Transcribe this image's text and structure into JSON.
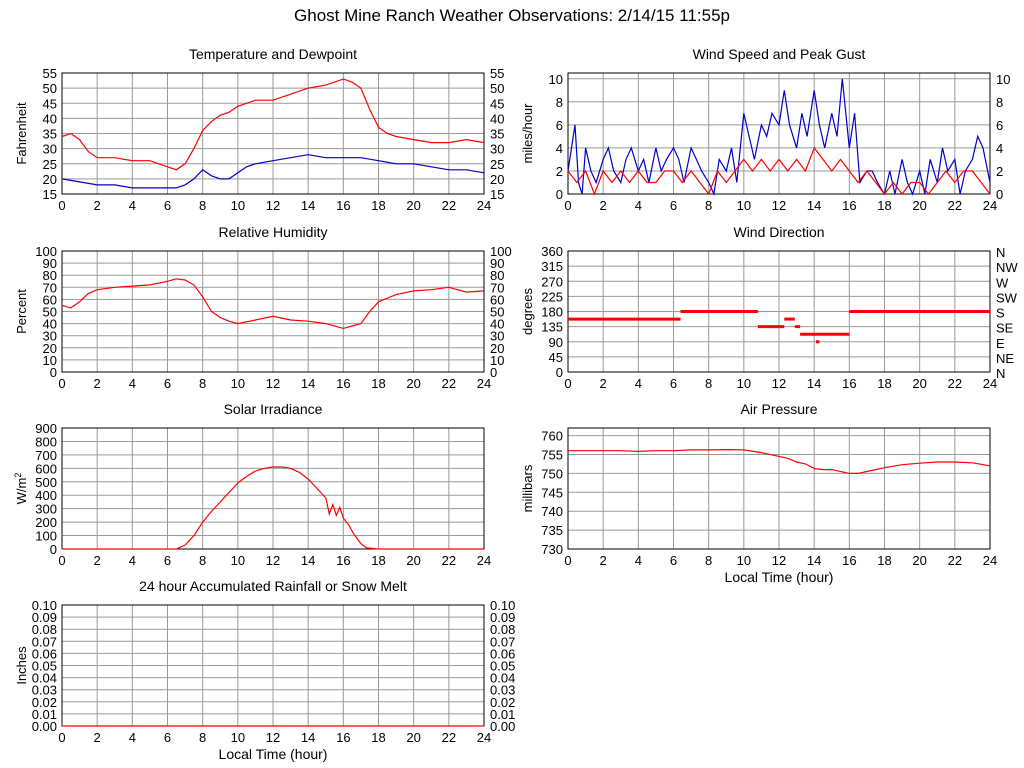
{
  "page": {
    "title": "Ghost Mine Ranch Weather Observations: 2/14/15 11:55p"
  },
  "chart_data": [
    {
      "id": "temperature",
      "type": "line",
      "title": "Temperature and Dewpoint",
      "ylabel": "Fahrenheit",
      "xlim": [
        0,
        24
      ],
      "ylim": [
        15,
        55
      ],
      "xticks": [
        0,
        2,
        4,
        6,
        8,
        10,
        12,
        14,
        16,
        18,
        20,
        22,
        24
      ],
      "yticks": [
        15,
        20,
        25,
        30,
        35,
        40,
        45,
        50,
        55
      ],
      "right_axis": true,
      "series": [
        {
          "color": "#ff0000",
          "x": [
            0,
            0.5,
            1,
            1.5,
            2,
            3,
            4,
            5,
            5.5,
            6,
            6.5,
            7,
            7.5,
            8,
            8.5,
            9,
            9.5,
            10,
            10.5,
            11,
            12,
            13,
            14,
            15,
            15.5,
            16,
            16.5,
            17,
            17.5,
            18,
            18.5,
            19,
            20,
            21,
            22,
            23,
            24
          ],
          "y": [
            34,
            35,
            33,
            29,
            27,
            27,
            26,
            26,
            25,
            24,
            23,
            25,
            30,
            36,
            39,
            41,
            42,
            44,
            45,
            46,
            46,
            48,
            50,
            51,
            52,
            53,
            52,
            50,
            43,
            37,
            35,
            34,
            33,
            32,
            32,
            33,
            32
          ]
        },
        {
          "color": "#0000cc",
          "x": [
            0,
            1,
            2,
            3,
            4,
            5,
            6,
            6.5,
            7,
            7.5,
            8,
            8.5,
            9,
            9.5,
            10,
            10.5,
            11,
            12,
            13,
            14,
            15,
            16,
            17,
            18,
            19,
            20,
            21,
            22,
            23,
            24
          ],
          "y": [
            20,
            19,
            18,
            18,
            17,
            17,
            17,
            17,
            18,
            20,
            23,
            21,
            20,
            20,
            22,
            24,
            25,
            26,
            27,
            28,
            27,
            27,
            27,
            26,
            25,
            25,
            24,
            23,
            23,
            22
          ]
        }
      ]
    },
    {
      "id": "wind_speed",
      "type": "line",
      "title": "Wind Speed and Peak Gust",
      "ylabel": "miles/hour",
      "xlim": [
        0,
        24
      ],
      "ylim": [
        0,
        10.5
      ],
      "xticks": [
        0,
        2,
        4,
        6,
        8,
        10,
        12,
        14,
        16,
        18,
        20,
        22,
        24
      ],
      "yticks": [
        0,
        2,
        4,
        6,
        8,
        10
      ],
      "right_axis": true,
      "series": [
        {
          "color": "#0000cc",
          "x": [
            0,
            0.2,
            0.4,
            0.6,
            0.8,
            1,
            1.3,
            1.6,
            2,
            2.3,
            2.6,
            3,
            3.3,
            3.6,
            4,
            4.3,
            4.6,
            5,
            5.3,
            5.6,
            6,
            6.3,
            6.6,
            7,
            7.3,
            7.6,
            8,
            8.3,
            8.6,
            9,
            9.3,
            9.6,
            10,
            10.3,
            10.6,
            11,
            11.3,
            11.6,
            12,
            12.3,
            12.6,
            13,
            13.3,
            13.6,
            14,
            14.3,
            14.6,
            15,
            15.3,
            15.6,
            16,
            16.3,
            16.6,
            17,
            17.3,
            17.6,
            18,
            18.3,
            18.6,
            19,
            19.3,
            19.6,
            20,
            20.3,
            20.6,
            21,
            21.3,
            21.6,
            22,
            22.3,
            22.6,
            23,
            23.3,
            23.6,
            24
          ],
          "y": [
            2,
            4,
            6,
            1,
            0,
            4,
            2,
            1,
            3,
            4,
            2,
            1,
            3,
            4,
            2,
            3,
            1,
            4,
            2,
            3,
            4,
            3,
            1,
            4,
            3,
            2,
            1,
            0,
            3,
            2,
            4,
            1,
            7,
            5,
            3,
            6,
            5,
            7,
            6,
            9,
            6,
            4,
            7,
            5,
            9,
            6,
            4,
            7,
            5,
            10,
            4,
            7,
            1,
            2,
            2,
            1,
            0,
            2,
            0,
            3,
            1,
            0,
            2,
            0,
            3,
            1,
            4,
            2,
            3,
            0,
            2,
            3,
            5,
            4,
            1
          ]
        },
        {
          "color": "#ff0000",
          "x": [
            0,
            0.5,
            1,
            1.5,
            2,
            2.5,
            3,
            3.5,
            4,
            4.5,
            5,
            5.5,
            6,
            6.5,
            7,
            7.5,
            8,
            8.5,
            9,
            9.5,
            10,
            10.5,
            11,
            11.5,
            12,
            12.5,
            13,
            13.5,
            14,
            14.5,
            15,
            15.5,
            16,
            16.5,
            17,
            17.5,
            18,
            18.5,
            19,
            19.5,
            20,
            20.5,
            21,
            21.5,
            22,
            22.5,
            23,
            23.5,
            24
          ],
          "y": [
            2,
            1,
            2,
            0,
            2,
            1,
            2,
            1,
            2,
            1,
            1,
            2,
            2,
            1,
            2,
            1,
            0,
            2,
            1,
            2,
            3,
            2,
            3,
            2,
            3,
            2,
            3,
            2,
            4,
            3,
            2,
            3,
            2,
            1,
            2,
            1,
            0,
            1,
            0,
            1,
            1,
            0,
            1,
            2,
            1,
            2,
            2,
            1,
            0
          ]
        }
      ]
    },
    {
      "id": "humidity",
      "type": "line",
      "title": "Relative Humidity",
      "ylabel": "Percent",
      "xlim": [
        0,
        24
      ],
      "ylim": [
        0,
        100
      ],
      "xticks": [
        0,
        2,
        4,
        6,
        8,
        10,
        12,
        14,
        16,
        18,
        20,
        22,
        24
      ],
      "yticks": [
        0,
        10,
        20,
        30,
        40,
        50,
        60,
        70,
        80,
        90,
        100
      ],
      "right_axis": true,
      "series": [
        {
          "color": "#ff0000",
          "x": [
            0,
            0.5,
            1,
            1.5,
            2,
            3,
            4,
            5,
            6,
            6.5,
            7,
            7.5,
            8,
            8.5,
            9,
            9.5,
            10,
            11,
            12,
            13,
            14,
            15,
            16,
            16.5,
            17,
            17.5,
            18,
            19,
            20,
            21,
            22,
            23,
            24
          ],
          "y": [
            55,
            53,
            58,
            65,
            68,
            70,
            71,
            72,
            75,
            77,
            76,
            72,
            62,
            50,
            45,
            42,
            40,
            43,
            46,
            43,
            42,
            40,
            36,
            38,
            40,
            50,
            58,
            64,
            67,
            68,
            70,
            66,
            67
          ]
        }
      ]
    },
    {
      "id": "wind_direction",
      "type": "scatter",
      "title": "Wind Direction",
      "ylabel": "degrees",
      "xlim": [
        0,
        24
      ],
      "ylim": [
        0,
        360
      ],
      "xticks": [
        0,
        2,
        4,
        6,
        8,
        10,
        12,
        14,
        16,
        18,
        20,
        22,
        24
      ],
      "yticks": [
        0,
        45,
        90,
        135,
        180,
        225,
        270,
        315,
        360
      ],
      "right_labels": [
        "N",
        "NE",
        "E",
        "SE",
        "S",
        "SW",
        "W",
        "NW",
        "N"
      ],
      "segments": [
        {
          "x0": 0,
          "x1": 6.4,
          "y": 157.5
        },
        {
          "x0": 6.4,
          "x1": 10.8,
          "y": 180
        },
        {
          "x0": 10.8,
          "x1": 12.3,
          "y": 135
        },
        {
          "x0": 12.3,
          "x1": 12.9,
          "y": 157.5
        },
        {
          "x0": 12.9,
          "x1": 13.2,
          "y": 135
        },
        {
          "x0": 13.2,
          "x1": 16.0,
          "y": 112.5
        },
        {
          "x0": 14.1,
          "x1": 14.3,
          "y": 90
        },
        {
          "x0": 16.0,
          "x1": 24,
          "y": 180
        }
      ]
    },
    {
      "id": "solar",
      "type": "line",
      "title": "Solar Irradiance",
      "ylabel": "W/m",
      "ylabel_sup": "2",
      "xlim": [
        0,
        24
      ],
      "ylim": [
        0,
        900
      ],
      "xticks": [
        0,
        2,
        4,
        6,
        8,
        10,
        12,
        14,
        16,
        18,
        20,
        22,
        24
      ],
      "yticks": [
        0,
        100,
        200,
        300,
        400,
        500,
        600,
        700,
        800,
        900
      ],
      "right_axis": false,
      "series": [
        {
          "color": "#ff0000",
          "x": [
            0,
            6.5,
            7,
            7.5,
            8,
            8.5,
            9,
            9.5,
            10,
            10.5,
            11,
            11.5,
            12,
            12.5,
            13,
            13.5,
            14,
            14.5,
            15,
            15.2,
            15.4,
            15.6,
            15.8,
            16,
            16.3,
            16.6,
            17,
            17.3,
            17.6,
            18,
            24
          ],
          "y": [
            0,
            0,
            30,
            100,
            200,
            280,
            350,
            420,
            490,
            540,
            580,
            600,
            610,
            610,
            600,
            570,
            520,
            450,
            380,
            260,
            330,
            250,
            310,
            230,
            180,
            110,
            40,
            10,
            5,
            0,
            0
          ]
        }
      ]
    },
    {
      "id": "pressure",
      "type": "line",
      "title": "Air Pressure",
      "ylabel": "millibars",
      "xlabel": "Local Time (hour)",
      "xlim": [
        0,
        24
      ],
      "ylim": [
        730,
        762
      ],
      "xticks": [
        0,
        2,
        4,
        6,
        8,
        10,
        12,
        14,
        16,
        18,
        20,
        22,
        24
      ],
      "yticks": [
        730,
        735,
        740,
        745,
        750,
        755,
        760
      ],
      "right_axis": false,
      "series": [
        {
          "color": "#ff0000",
          "x": [
            0,
            1,
            2,
            3,
            4,
            5,
            6,
            7,
            8,
            9,
            10,
            11,
            12,
            12.5,
            13,
            13.5,
            14,
            14.5,
            15,
            16,
            16.5,
            17,
            18,
            19,
            20,
            21,
            22,
            23,
            24
          ],
          "y": [
            756,
            756,
            756,
            756,
            755.8,
            756,
            756,
            756.2,
            756.2,
            756.3,
            756.2,
            755.5,
            754.5,
            754,
            753,
            752.5,
            751.3,
            751,
            751,
            750,
            750,
            750.5,
            751.5,
            752.3,
            752.7,
            753,
            753,
            752.8,
            752
          ]
        }
      ]
    },
    {
      "id": "rainfall",
      "type": "line",
      "title": "24 hour Accumulated Rainfall or Snow Melt",
      "ylabel": "Inches",
      "xlabel": "Local Time (hour)",
      "xlim": [
        0,
        24
      ],
      "ylim": [
        0,
        0.1
      ],
      "xticks": [
        0,
        2,
        4,
        6,
        8,
        10,
        12,
        14,
        16,
        18,
        20,
        22,
        24
      ],
      "yticks": [
        0,
        0.01,
        0.02,
        0.03,
        0.04,
        0.05,
        0.06,
        0.07,
        0.08,
        0.09,
        0.1
      ],
      "ytick_decimals": 2,
      "right_axis": true,
      "series": [
        {
          "color": "#ff0000",
          "x": [
            0,
            24
          ],
          "y": [
            0,
            0
          ]
        }
      ]
    }
  ]
}
